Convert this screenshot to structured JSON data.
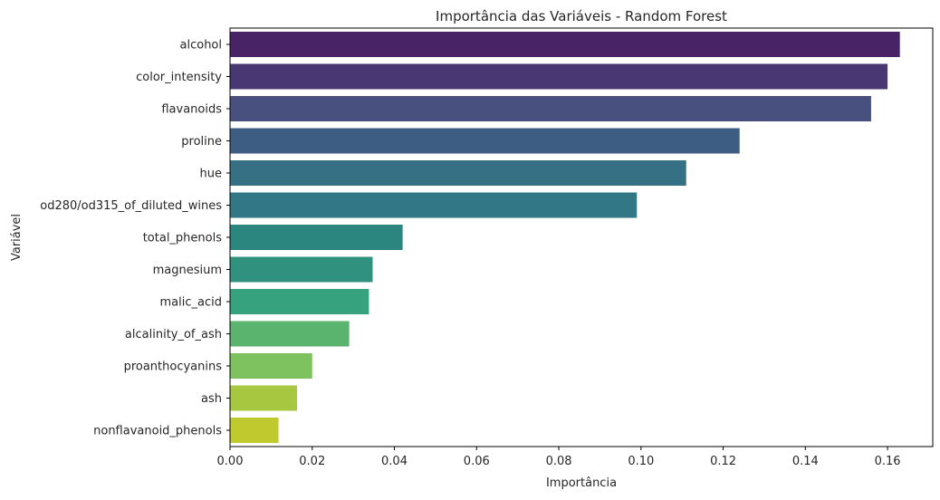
{
  "chart_data": {
    "type": "bar",
    "orientation": "horizontal",
    "title": "Importância das Variáveis - Random Forest",
    "xlabel": "Importância",
    "ylabel": "Variável",
    "xlim": [
      0,
      0.171
    ],
    "xticks": [
      0.0,
      0.02,
      0.04,
      0.06,
      0.08,
      0.1,
      0.12,
      0.14,
      0.16
    ],
    "xtick_labels": [
      "0.00",
      "0.02",
      "0.04",
      "0.06",
      "0.08",
      "0.10",
      "0.12",
      "0.14",
      "0.16"
    ],
    "grid": false,
    "categories": [
      "alcohol",
      "color_intensity",
      "flavanoids",
      "proline",
      "hue",
      "od280/od315_of_diluted_wines",
      "total_phenols",
      "magnesium",
      "malic_acid",
      "alcalinity_of_ash",
      "proanthocyanins",
      "ash",
      "nonflavanoid_phenols"
    ],
    "values": [
      0.163,
      0.16,
      0.156,
      0.124,
      0.111,
      0.099,
      0.042,
      0.0347,
      0.0338,
      0.029,
      0.02,
      0.0163,
      0.0118
    ],
    "colors": [
      "#482467",
      "#483773",
      "#48507f",
      "#3e5d82",
      "#357085",
      "#317785",
      "#2c8680",
      "#30917f",
      "#36a37e",
      "#5ab46e",
      "#7ec25f",
      "#a7c740",
      "#c0c92e"
    ]
  }
}
